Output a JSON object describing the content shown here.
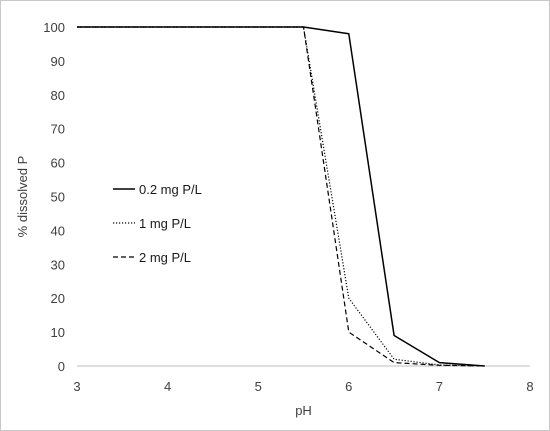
{
  "chart_data": {
    "type": "line",
    "title": "",
    "xlabel": "pH",
    "ylabel": "% dissolved P",
    "xlim": [
      3,
      8
    ],
    "ylim": [
      0,
      100
    ],
    "xticks": [
      3,
      4,
      5,
      6,
      7,
      8
    ],
    "yticks": [
      0,
      10,
      20,
      30,
      40,
      50,
      60,
      70,
      80,
      90,
      100
    ],
    "grid": false,
    "legend_position": "left",
    "series": [
      {
        "name": "0.2 mg P/L",
        "style": "solid",
        "color": "#000000",
        "x": [
          3,
          5.5,
          6,
          6.5,
          7,
          7.5
        ],
        "y": [
          100,
          100,
          98,
          9,
          1,
          0
        ]
      },
      {
        "name": "1 mg P/L",
        "style": "dotted",
        "color": "#000000",
        "x": [
          3,
          5.5,
          6,
          6.5,
          7,
          7.5
        ],
        "y": [
          100,
          100,
          20,
          2,
          0.3,
          0
        ]
      },
      {
        "name": "2 mg P/L",
        "style": "dashed",
        "color": "#000000",
        "x": [
          3,
          5.5,
          6,
          6.5,
          7,
          7.5
        ],
        "y": [
          100,
          100,
          10,
          1,
          0.2,
          0
        ]
      }
    ]
  }
}
